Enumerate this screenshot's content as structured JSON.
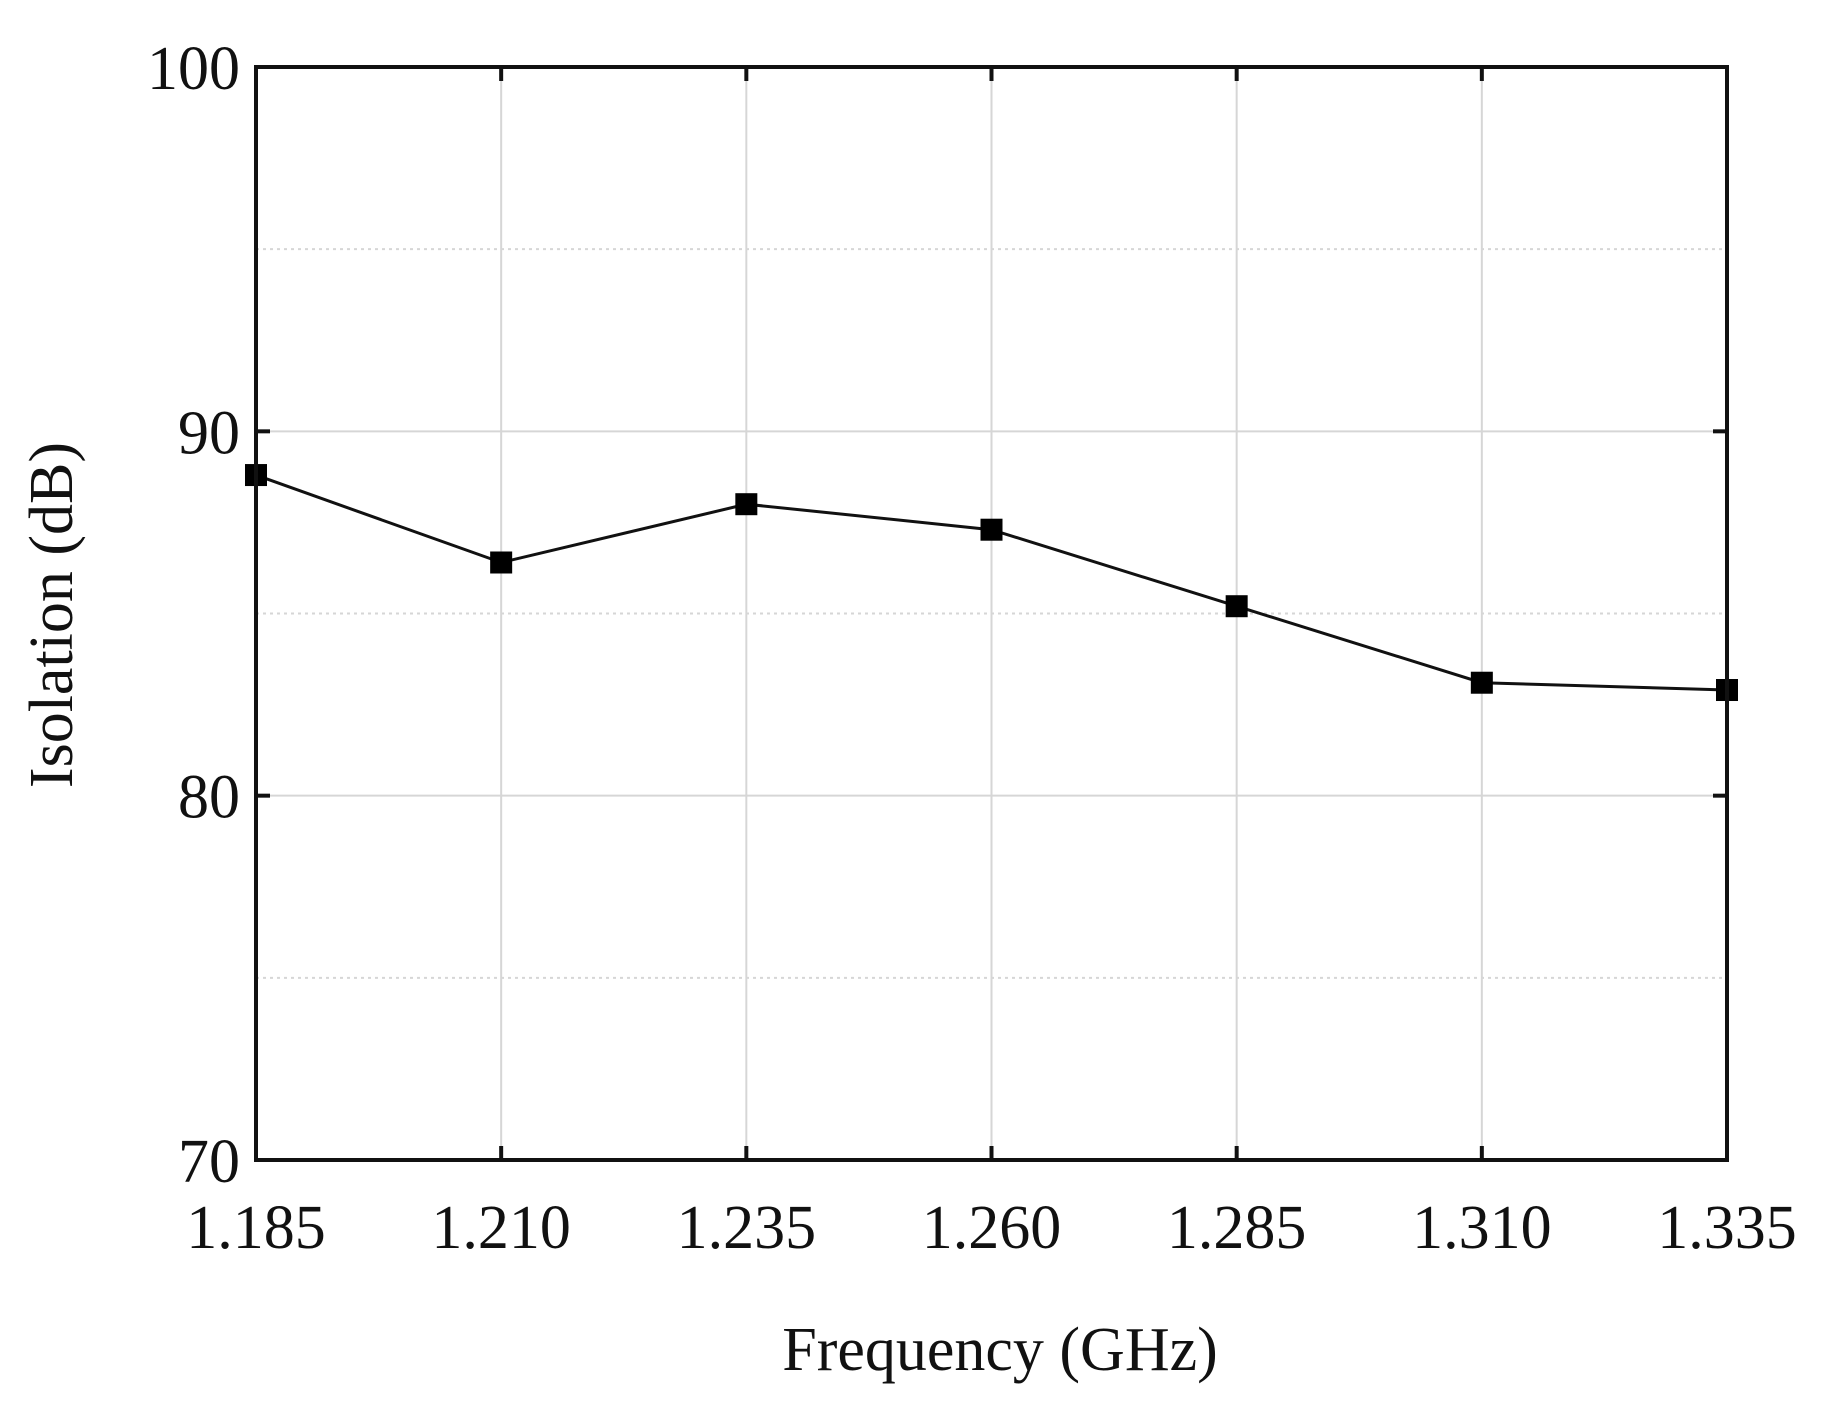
{
  "chart_data": {
    "type": "line",
    "title": "",
    "xlabel": "Frequency (GHz)",
    "ylabel": "Isolation (dB)",
    "xlim": [
      1.185,
      1.335
    ],
    "ylim": [
      70,
      100
    ],
    "x_ticks": [
      "1.185",
      "1.210",
      "1.235",
      "1.260",
      "1.285",
      "1.310",
      "1.335"
    ],
    "y_ticks": [
      "70",
      "80",
      "90",
      "100"
    ],
    "x_tick_values": [
      1.185,
      1.21,
      1.235,
      1.26,
      1.285,
      1.31,
      1.335
    ],
    "y_tick_values": [
      70,
      80,
      90,
      100
    ],
    "y_minor_gridlines": [
      75,
      85,
      95
    ],
    "grid": true,
    "marker": "square",
    "colors": {
      "line": "#111111",
      "marker": "#000000",
      "grid": "#d6d6d6"
    },
    "x": [
      1.185,
      1.21,
      1.235,
      1.26,
      1.285,
      1.31,
      1.335
    ],
    "series": [
      {
        "values": [
          88.8,
          86.4,
          88.0,
          87.3,
          85.2,
          83.1,
          82.9
        ]
      }
    ]
  }
}
